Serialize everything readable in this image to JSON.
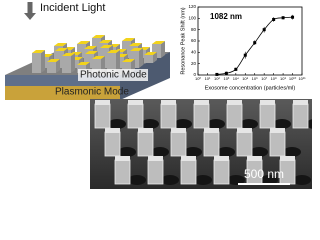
{
  "illustration": {
    "incident_light": "Incident Light",
    "photonic_mode": "Photonic Mode",
    "plasmonic_mode": "Plasmonic Mode"
  },
  "micrograph": {
    "scale_bar": "500 nm"
  },
  "chart_data": {
    "type": "scatter",
    "annotation": "1082 nm",
    "x_label": "Exosome concentration (particles/ml)",
    "y_label": "Resonance Peak Shift (nm)",
    "log_x": true,
    "color": "#000000",
    "x": [
      100,
      1000,
      10000,
      100000,
      1000000,
      10000000,
      100000000,
      1000000000,
      10000000000
    ],
    "values": [
      1,
      3,
      10,
      35,
      57,
      80,
      98,
      101,
      102
    ],
    "errors": [
      2,
      3,
      3,
      6,
      4,
      5,
      4,
      3,
      4
    ],
    "xlim": [
      1,
      100000000000
    ],
    "xticks": [
      {
        "value": 1,
        "label": "10⁰"
      },
      {
        "value": 10,
        "label": "10¹"
      },
      {
        "value": 100,
        "label": "10²"
      },
      {
        "value": 1000,
        "label": "10³"
      },
      {
        "value": 10000,
        "label": "10⁴"
      },
      {
        "value": 100000,
        "label": "10⁵"
      },
      {
        "value": 1000000,
        "label": "10⁶"
      },
      {
        "value": 10000000,
        "label": "10⁷"
      },
      {
        "value": 100000000,
        "label": "10⁸"
      },
      {
        "value": 1000000000,
        "label": "10⁹"
      },
      {
        "value": 10000000000,
        "label": "10¹⁰"
      },
      {
        "value": 100000000000,
        "label": "10¹¹"
      }
    ],
    "ylim": [
      0,
      120
    ],
    "yticks": [
      0,
      20,
      40,
      60,
      80,
      100,
      120
    ]
  }
}
